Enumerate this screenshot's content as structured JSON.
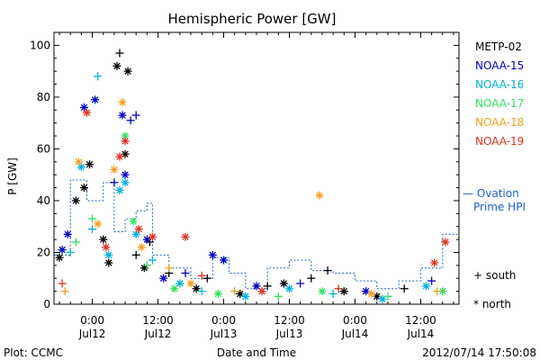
{
  "chart_data": {
    "type": "scatter",
    "title": "Hemispheric Power [GW]",
    "ylabel": "P [GW]",
    "xlabel": "Date and Time",
    "ylim": [
      0,
      105
    ],
    "yticks": [
      0,
      20,
      40,
      60,
      80,
      100
    ],
    "xlim": [
      "2012-07-11 17:00",
      "2012-07-14 19:00"
    ],
    "xticks": [
      {
        "x": "2012-07-12 00:00",
        "time": "0:00",
        "date": "Jul12"
      },
      {
        "x": "2012-07-12 12:00",
        "time": "12:00",
        "date": "Jul12"
      },
      {
        "x": "2012-07-13 00:00",
        "time": "0:00",
        "date": "Jul13"
      },
      {
        "x": "2012-07-13 12:00",
        "time": "12:00",
        "date": "Jul13"
      },
      {
        "x": "2012-07-14 00:00",
        "time": "0:00",
        "date": "Jul14"
      },
      {
        "x": "2012-07-14 12:00",
        "time": "12:00",
        "date": "Jul14"
      }
    ],
    "marker_legend": {
      "south": "+ south",
      "north": "* north"
    },
    "series": [
      {
        "name": "METP-02",
        "color": "#000000",
        "points": [
          {
            "x": "2012-07-11 18:00",
            "y": 18,
            "m": "north"
          },
          {
            "x": "2012-07-11 21:00",
            "y": 40,
            "m": "north"
          },
          {
            "x": "2012-07-11 22:30",
            "y": 45,
            "m": "north"
          },
          {
            "x": "2012-07-11 23:30",
            "y": 54,
            "m": "north"
          },
          {
            "x": "2012-07-12 02:00",
            "y": 25,
            "m": "north"
          },
          {
            "x": "2012-07-12 03:00",
            "y": 16,
            "m": "north"
          },
          {
            "x": "2012-07-12 04:30",
            "y": 92,
            "m": "north"
          },
          {
            "x": "2012-07-12 05:00",
            "y": 97,
            "m": "south"
          },
          {
            "x": "2012-07-12 06:30",
            "y": 90,
            "m": "north"
          },
          {
            "x": "2012-07-12 06:00",
            "y": 58,
            "m": "north"
          },
          {
            "x": "2012-07-12 08:00",
            "y": 19,
            "m": "south"
          },
          {
            "x": "2012-07-12 09:30",
            "y": 14,
            "m": "north"
          },
          {
            "x": "2012-07-12 10:30",
            "y": 24,
            "m": "south"
          },
          {
            "x": "2012-07-12 14:00",
            "y": 12,
            "m": "south"
          },
          {
            "x": "2012-07-12 19:00",
            "y": 6,
            "m": "north"
          },
          {
            "x": "2012-07-12 21:00",
            "y": 10,
            "m": "south"
          },
          {
            "x": "2012-07-13 03:00",
            "y": 4,
            "m": "north"
          },
          {
            "x": "2012-07-13 08:00",
            "y": 7,
            "m": "south"
          },
          {
            "x": "2012-07-13 11:00",
            "y": 8,
            "m": "north"
          },
          {
            "x": "2012-07-13 16:00",
            "y": 10,
            "m": "south"
          },
          {
            "x": "2012-07-13 19:00",
            "y": 13,
            "m": "south"
          },
          {
            "x": "2012-07-13 22:00",
            "y": 5,
            "m": "north"
          },
          {
            "x": "2012-07-14 04:00",
            "y": 3,
            "m": "north"
          },
          {
            "x": "2012-07-14 09:00",
            "y": 6,
            "m": "south"
          }
        ]
      },
      {
        "name": "NOAA-15",
        "color": "#0000cc",
        "points": [
          {
            "x": "2012-07-11 18:30",
            "y": 21,
            "m": "north"
          },
          {
            "x": "2012-07-11 19:30",
            "y": 27,
            "m": "north"
          },
          {
            "x": "2012-07-11 22:30",
            "y": 76,
            "m": "north"
          },
          {
            "x": "2012-07-12 00:30",
            "y": 79,
            "m": "north"
          },
          {
            "x": "2012-07-12 04:00",
            "y": 47,
            "m": "south"
          },
          {
            "x": "2012-07-12 05:30",
            "y": 73,
            "m": "north"
          },
          {
            "x": "2012-07-12 07:00",
            "y": 71,
            "m": "south"
          },
          {
            "x": "2012-07-12 08:00",
            "y": 73,
            "m": "south"
          },
          {
            "x": "2012-07-12 06:00",
            "y": 50,
            "m": "north"
          },
          {
            "x": "2012-07-12 10:00",
            "y": 25,
            "m": "north"
          },
          {
            "x": "2012-07-12 13:00",
            "y": 10,
            "m": "north"
          },
          {
            "x": "2012-07-12 17:00",
            "y": 12,
            "m": "south"
          },
          {
            "x": "2012-07-12 22:00",
            "y": 19,
            "m": "north"
          },
          {
            "x": "2012-07-13 00:00",
            "y": 17,
            "m": "north"
          },
          {
            "x": "2012-07-13 06:00",
            "y": 7,
            "m": "north"
          },
          {
            "x": "2012-07-13 14:00",
            "y": 8,
            "m": "south"
          },
          {
            "x": "2012-07-14 02:00",
            "y": 5,
            "m": "north"
          },
          {
            "x": "2012-07-14 14:00",
            "y": 9,
            "m": "south"
          }
        ]
      },
      {
        "name": "NOAA-16",
        "color": "#00b0e0",
        "points": [
          {
            "x": "2012-07-11 20:00",
            "y": 20,
            "m": "south"
          },
          {
            "x": "2012-07-11 22:00",
            "y": 53,
            "m": "north"
          },
          {
            "x": "2012-07-12 00:00",
            "y": 29,
            "m": "south"
          },
          {
            "x": "2012-07-12 01:00",
            "y": 88,
            "m": "south"
          },
          {
            "x": "2012-07-12 03:00",
            "y": 19,
            "m": "north"
          },
          {
            "x": "2012-07-12 05:00",
            "y": 44,
            "m": "north"
          },
          {
            "x": "2012-07-12 06:00",
            "y": 47,
            "m": "north"
          },
          {
            "x": "2012-07-12 08:00",
            "y": 27,
            "m": "north"
          },
          {
            "x": "2012-07-12 11:00",
            "y": 17,
            "m": "south"
          },
          {
            "x": "2012-07-12 16:00",
            "y": 8,
            "m": "north"
          },
          {
            "x": "2012-07-12 20:00",
            "y": 5,
            "m": "south"
          },
          {
            "x": "2012-07-13 04:00",
            "y": 3,
            "m": "north"
          },
          {
            "x": "2012-07-13 12:00",
            "y": 6,
            "m": "north"
          },
          {
            "x": "2012-07-13 20:00",
            "y": 4,
            "m": "south"
          },
          {
            "x": "2012-07-14 05:00",
            "y": 2,
            "m": "north"
          },
          {
            "x": "2012-07-14 13:00",
            "y": 7,
            "m": "north"
          }
        ]
      },
      {
        "name": "NOAA-17",
        "color": "#30e060",
        "points": [
          {
            "x": "2012-07-11 21:00",
            "y": 24,
            "m": "south"
          },
          {
            "x": "2012-07-12 00:00",
            "y": 33,
            "m": "south"
          },
          {
            "x": "2012-07-12 06:00",
            "y": 65,
            "m": "north"
          },
          {
            "x": "2012-07-12 07:30",
            "y": 32,
            "m": "north"
          },
          {
            "x": "2012-07-12 10:00",
            "y": 15,
            "m": "south"
          },
          {
            "x": "2012-07-12 15:00",
            "y": 6,
            "m": "north"
          },
          {
            "x": "2012-07-12 23:00",
            "y": 4,
            "m": "north"
          },
          {
            "x": "2012-07-13 10:00",
            "y": 3,
            "m": "south"
          },
          {
            "x": "2012-07-13 18:00",
            "y": 5,
            "m": "north"
          },
          {
            "x": "2012-07-14 06:00",
            "y": 3,
            "m": "south"
          },
          {
            "x": "2012-07-14 16:00",
            "y": 5,
            "m": "north"
          }
        ]
      },
      {
        "name": "NOAA-18",
        "color": "#f0a020",
        "points": [
          {
            "x": "2012-07-11 19:00",
            "y": 5,
            "m": "south"
          },
          {
            "x": "2012-07-11 21:30",
            "y": 55,
            "m": "north"
          },
          {
            "x": "2012-07-12 01:00",
            "y": 31,
            "m": "north"
          },
          {
            "x": "2012-07-12 04:00",
            "y": 52,
            "m": "north"
          },
          {
            "x": "2012-07-12 05:30",
            "y": 78,
            "m": "north"
          },
          {
            "x": "2012-07-12 09:00",
            "y": 22,
            "m": "north"
          },
          {
            "x": "2012-07-12 14:00",
            "y": 14,
            "m": "south"
          },
          {
            "x": "2012-07-12 18:00",
            "y": 8,
            "m": "north"
          },
          {
            "x": "2012-07-13 02:00",
            "y": 5,
            "m": "south"
          },
          {
            "x": "2012-07-13 17:30",
            "y": 42,
            "m": "north"
          },
          {
            "x": "2012-07-14 03:00",
            "y": 4,
            "m": "north"
          },
          {
            "x": "2012-07-14 15:00",
            "y": 5,
            "m": "south"
          }
        ]
      },
      {
        "name": "NOAA-19",
        "color": "#e03020",
        "points": [
          {
            "x": "2012-07-11 18:30",
            "y": 8,
            "m": "south"
          },
          {
            "x": "2012-07-11 23:00",
            "y": 74,
            "m": "north"
          },
          {
            "x": "2012-07-12 02:30",
            "y": 22,
            "m": "north"
          },
          {
            "x": "2012-07-12 05:00",
            "y": 57,
            "m": "north"
          },
          {
            "x": "2012-07-12 06:00",
            "y": 63,
            "m": "north"
          },
          {
            "x": "2012-07-12 08:30",
            "y": 29,
            "m": "north"
          },
          {
            "x": "2012-07-12 11:00",
            "y": 26,
            "m": "north"
          },
          {
            "x": "2012-07-12 17:00",
            "y": 26,
            "m": "north"
          },
          {
            "x": "2012-07-12 20:00",
            "y": 11,
            "m": "south"
          },
          {
            "x": "2012-07-13 07:00",
            "y": 5,
            "m": "north"
          },
          {
            "x": "2012-07-13 21:00",
            "y": 6,
            "m": "south"
          },
          {
            "x": "2012-07-14 14:30",
            "y": 16,
            "m": "north"
          },
          {
            "x": "2012-07-14 16:30",
            "y": 24,
            "m": "north"
          }
        ]
      }
    ],
    "ovation": {
      "name": "Ovation Prime HPI",
      "label_line1": "— Ovation",
      "label_line2": "Prime HPI",
      "color": "#1f5fd0",
      "points": [
        {
          "x": "2012-07-11 17:00",
          "y": 19
        },
        {
          "x": "2012-07-11 20:00",
          "y": 48
        },
        {
          "x": "2012-07-11 23:00",
          "y": 40
        },
        {
          "x": "2012-07-12 02:00",
          "y": 47
        },
        {
          "x": "2012-07-12 04:00",
          "y": 28
        },
        {
          "x": "2012-07-12 06:00",
          "y": 33
        },
        {
          "x": "2012-07-12 08:00",
          "y": 36
        },
        {
          "x": "2012-07-12 10:00",
          "y": 39
        },
        {
          "x": "2012-07-12 11:00",
          "y": 19
        },
        {
          "x": "2012-07-12 14:00",
          "y": 14
        },
        {
          "x": "2012-07-12 18:00",
          "y": 10
        },
        {
          "x": "2012-07-12 22:00",
          "y": 18
        },
        {
          "x": "2012-07-13 01:00",
          "y": 12
        },
        {
          "x": "2012-07-13 04:00",
          "y": 6
        },
        {
          "x": "2012-07-13 08:00",
          "y": 14
        },
        {
          "x": "2012-07-13 12:00",
          "y": 17
        },
        {
          "x": "2012-07-13 16:00",
          "y": 13
        },
        {
          "x": "2012-07-13 20:00",
          "y": 12
        },
        {
          "x": "2012-07-14 00:00",
          "y": 9
        },
        {
          "x": "2012-07-14 04:00",
          "y": 6
        },
        {
          "x": "2012-07-14 08:00",
          "y": 9
        },
        {
          "x": "2012-07-14 12:00",
          "y": 14
        },
        {
          "x": "2012-07-14 16:00",
          "y": 27
        },
        {
          "x": "2012-07-14 19:00",
          "y": 31
        }
      ]
    }
  },
  "footer": {
    "plot_credit": "Plot: CCMC",
    "timestamp": "2012/07/14 17:50:08"
  }
}
